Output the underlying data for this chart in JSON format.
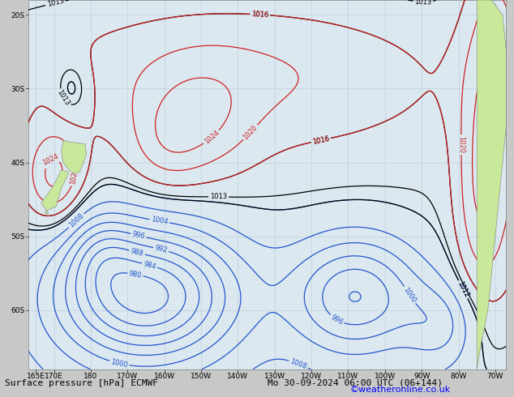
{
  "title_left": "Surface pressure [hPa] ECMWF",
  "title_right": "Mo 30-09-2024 06:00 UTC (06+144)",
  "copyright": "©weatheronline.co.uk",
  "background_color": "#dce8f0",
  "land_color": "#c8e89a",
  "grid_color": "#b8c8d8",
  "lon_min": 163,
  "lon_max": 293,
  "lat_min": -68,
  "lat_max": -18,
  "font_size_title": 8,
  "font_size_copyright": 8,
  "lon_ticks": [
    165,
    170,
    180,
    190,
    200,
    210,
    220,
    230,
    240,
    250,
    260,
    270,
    280,
    290
  ],
  "lat_ticks": [
    -20,
    -30,
    -40,
    -50,
    -60
  ]
}
